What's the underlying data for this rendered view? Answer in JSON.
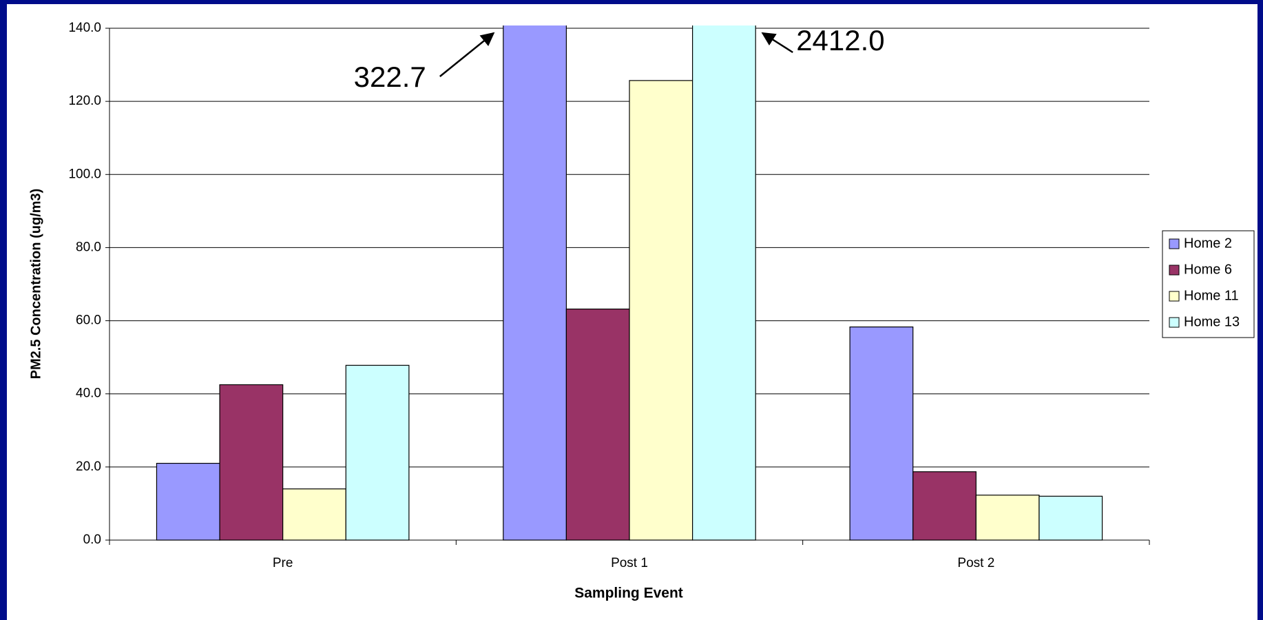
{
  "chart_data": {
    "type": "bar",
    "xlabel": "Sampling Event",
    "ylabel": "PM2.5 Concentration (ug/m3)",
    "categories": [
      "Pre",
      "Post 1",
      "Post 2"
    ],
    "series": [
      {
        "name": "Home 2",
        "color": "#9999ff",
        "values": [
          21.0,
          322.7,
          58.3
        ],
        "value_labels": [
          null,
          "322.7",
          null
        ]
      },
      {
        "name": "Home 6",
        "color": "#993366",
        "values": [
          42.5,
          63.2,
          18.7
        ]
      },
      {
        "name": "Home 11",
        "color": "#ffffcc",
        "values": [
          14.0,
          125.7,
          12.3
        ]
      },
      {
        "name": "Home 13",
        "color": "#ccffff",
        "values": [
          47.8,
          2412.0,
          12.0
        ],
        "value_labels": [
          null,
          "2412.0",
          null
        ]
      }
    ],
    "ylim": [
      0,
      140
    ],
    "yticks": [
      {
        "value": 0,
        "label": "0.0"
      },
      {
        "value": 20,
        "label": "20.0"
      },
      {
        "value": 40,
        "label": "40.0"
      },
      {
        "value": 60,
        "label": "60.0"
      },
      {
        "value": 80,
        "label": "80.0"
      },
      {
        "value": 100,
        "label": "100.0"
      },
      {
        "value": 120,
        "label": "120.0"
      },
      {
        "value": 140,
        "label": "140.0"
      }
    ],
    "grid": true,
    "legend": "right"
  }
}
